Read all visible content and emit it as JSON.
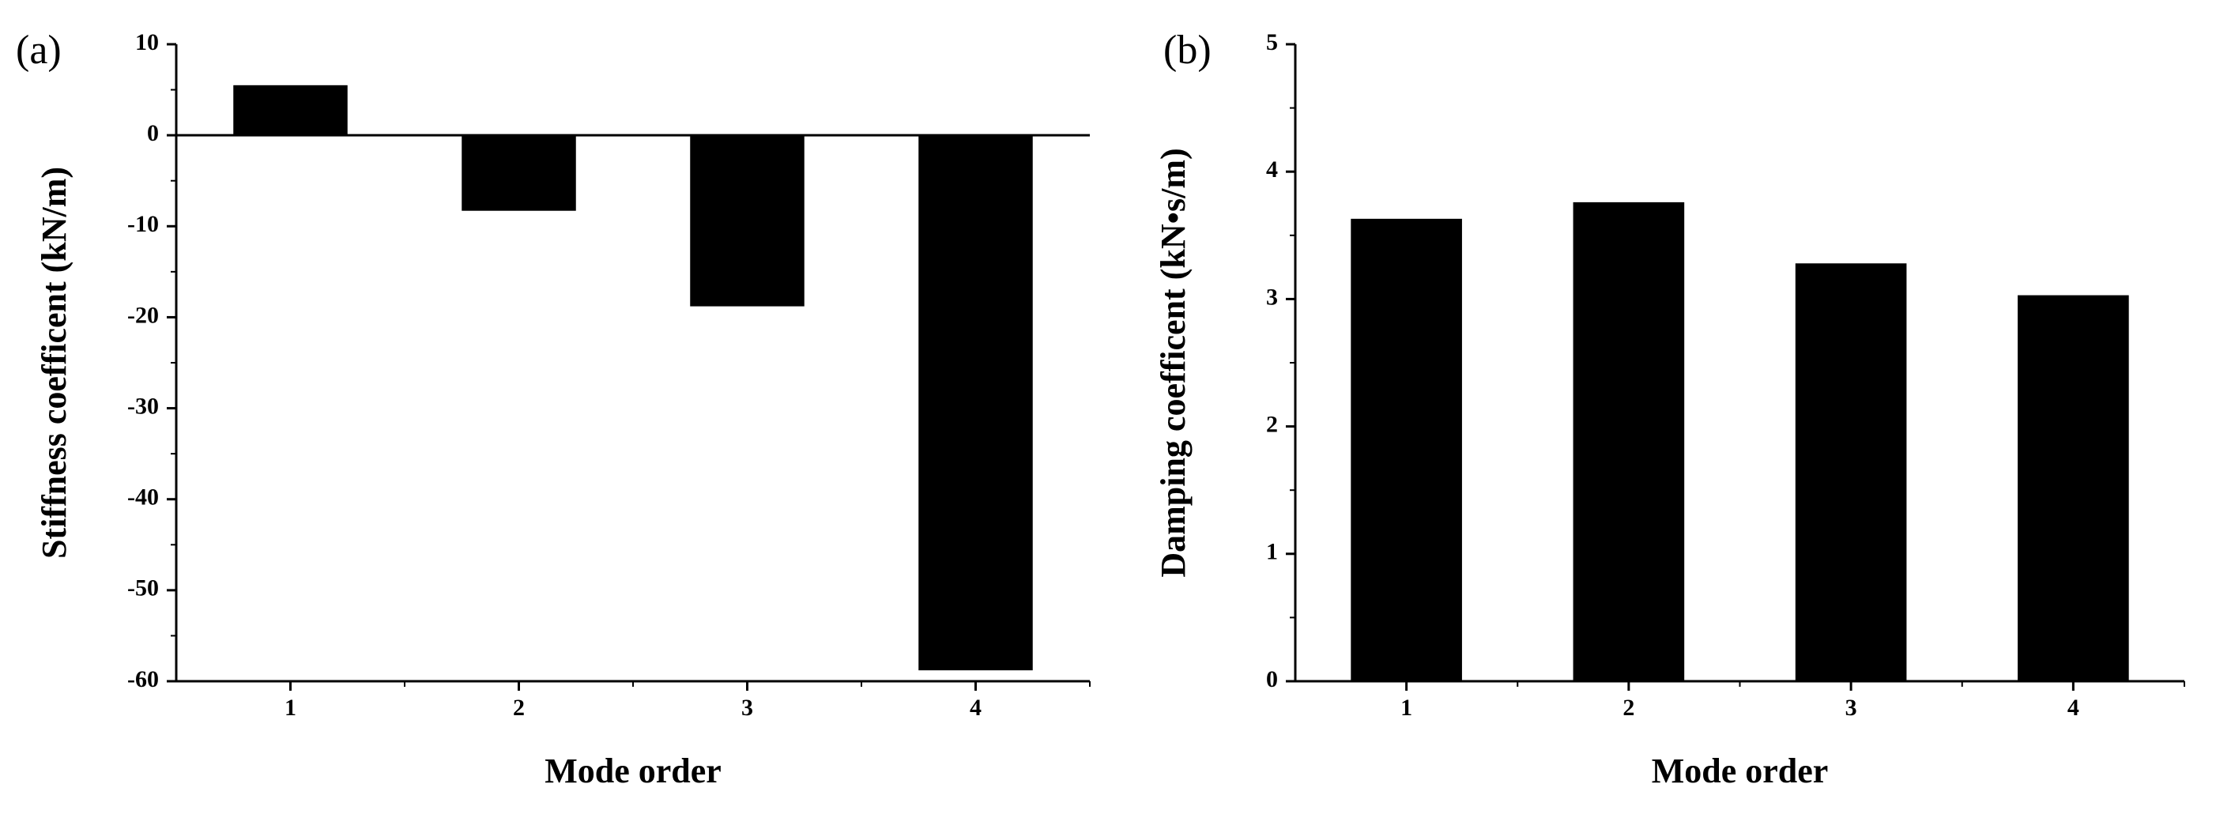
{
  "chart_data": [
    {
      "type": "bar",
      "panel": "(a)",
      "xlabel": "Mode order",
      "ylabel": "Stiffness coefficent (kN/m)",
      "categories": [
        "1",
        "2",
        "3",
        "4"
      ],
      "values": [
        5.5,
        -8.3,
        -18.8,
        -58.8
      ],
      "color": "#000000",
      "ylim": [
        -60,
        10
      ],
      "yticks": [
        -60,
        -50,
        -40,
        -30,
        -20,
        -10,
        0,
        10
      ]
    },
    {
      "type": "bar",
      "panel": "(b)",
      "xlabel": "Mode order",
      "ylabel": "Damping coefficent (kN•s/m)",
      "categories": [
        "1",
        "2",
        "3",
        "4"
      ],
      "values": [
        3.63,
        3.76,
        3.28,
        3.03
      ],
      "color": "#000000",
      "ylim": [
        0,
        5
      ],
      "yticks": [
        0,
        1,
        2,
        3,
        4,
        5
      ]
    }
  ]
}
